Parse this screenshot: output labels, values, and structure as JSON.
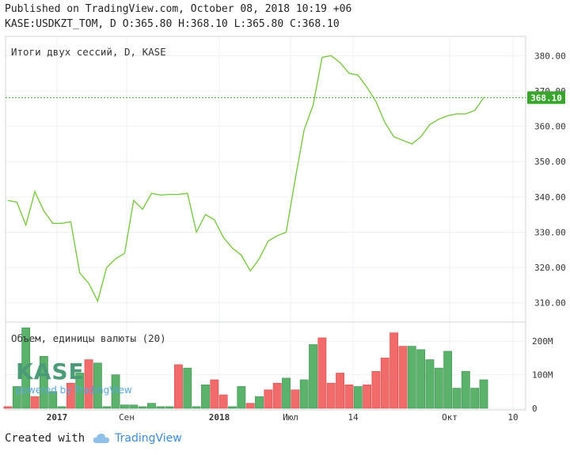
{
  "header": {
    "published": "Published on TradingView.com, October 08, 2018 10:19 +06",
    "ohlc": "KASE:USDKZT_TOM, D O:365.80 H:368.10 L:365.80 C:368.10"
  },
  "watermark": {
    "logo": "KASE",
    "powered": "powered by TradingView"
  },
  "footer": {
    "created": "Created with",
    "brand": "TradingView"
  },
  "colors": {
    "line": "#7ac943",
    "up": "#5ab26b",
    "down": "#f26b6b",
    "price_tag": "#3aa52d",
    "grid": "#eef1f4",
    "axis_text": "#333333"
  },
  "chart_data": [
    {
      "type": "line",
      "title": "Итоги двух сессий, D, KASE",
      "ylim": [
        305,
        385
      ],
      "y_ticks": [
        "310.00",
        "320.00",
        "330.00",
        "340.00",
        "350.00",
        "360.00",
        "370.00",
        "380.00"
      ],
      "last_price": "368.10",
      "x_ticks": [
        "2017",
        "Сен",
        "2018",
        "Июл",
        "14",
        "Окт",
        "10"
      ],
      "series": [
        {
          "values": [
            339,
            338.5,
            332,
            341.5,
            336,
            332.5,
            332.5,
            333,
            318.5,
            315.5,
            310.5,
            320,
            322.5,
            324,
            339,
            336.5,
            341,
            340.5,
            340.7,
            340.7,
            341,
            330,
            335,
            333.5,
            328.5,
            325.5,
            323.5,
            319,
            322.5,
            327.5,
            329,
            330,
            345,
            359,
            366,
            379.5,
            380,
            378,
            375,
            374.5,
            371,
            367,
            361,
            357,
            356,
            355,
            357,
            360.5,
            362,
            363,
            363.5,
            363.5,
            364.5,
            368.1
          ]
        }
      ]
    },
    {
      "type": "bar",
      "title": "Объем, единицы валюты (20)",
      "ylim": [
        0,
        250
      ],
      "y_ticks": [
        "0",
        "100M",
        "200M"
      ],
      "values": [
        5,
        65,
        240,
        35,
        155,
        50,
        5,
        75,
        105,
        145,
        135,
        5,
        100,
        10,
        10,
        5,
        15,
        5,
        5,
        130,
        120,
        5,
        70,
        85,
        40,
        5,
        65,
        15,
        35,
        55,
        75,
        90,
        55,
        85,
        190,
        210,
        75,
        105,
        70,
        65,
        70,
        110,
        150,
        225,
        185,
        185,
        175,
        145,
        120,
        170,
        60,
        110,
        60,
        85
      ],
      "directions": [
        "down",
        "up",
        "up",
        "down",
        "up",
        "up",
        "up",
        "down",
        "up",
        "down",
        "up",
        "up",
        "up",
        "up",
        "up",
        "up",
        "up",
        "up",
        "up",
        "down",
        "up",
        "up",
        "up",
        "down",
        "down",
        "up",
        "up",
        "down",
        "up",
        "down",
        "down",
        "up",
        "down",
        "up",
        "up",
        "down",
        "down",
        "down",
        "down",
        "up",
        "down",
        "down",
        "down",
        "down",
        "down",
        "up",
        "up",
        "up",
        "up",
        "up",
        "up",
        "up",
        "up",
        "up"
      ]
    }
  ]
}
